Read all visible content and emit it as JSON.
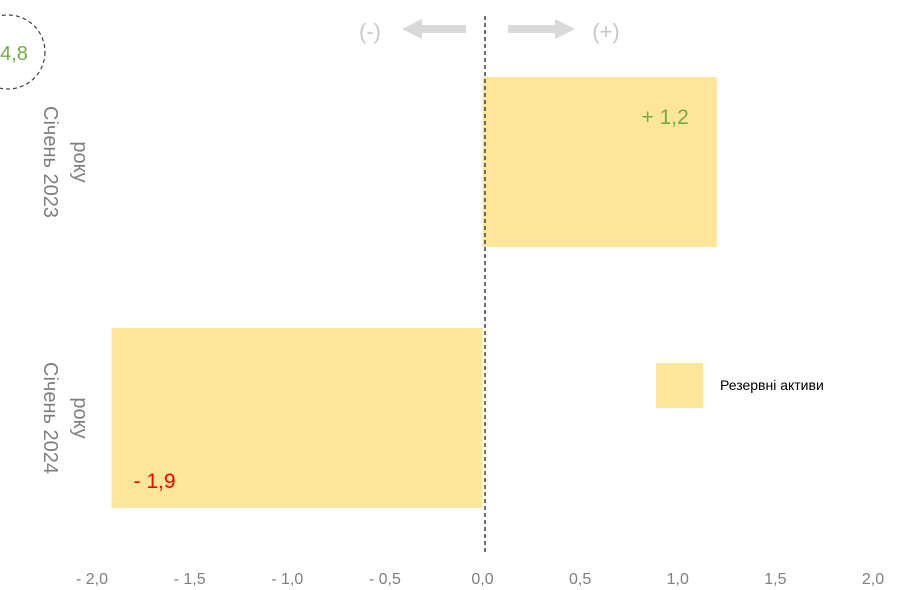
{
  "chart_data": {
    "type": "bar",
    "orientation": "horizontal",
    "categories": [
      "Січень 2023 року",
      "Січень 2024 року"
    ],
    "category_lines": [
      [
        "Січень 2023",
        "року"
      ],
      [
        "Січень 2024",
        "року"
      ]
    ],
    "series": [
      {
        "name": "Резервні активи",
        "values": [
          1.2,
          -1.9
        ],
        "color": "#fde59a"
      }
    ],
    "data_labels": [
      "+ 1,2",
      "- 1,9"
    ],
    "data_label_colors": [
      "#70ad47",
      "#ff0000"
    ],
    "xlim": [
      -2.0,
      2.0
    ],
    "xticks": [
      -2.0,
      -1.5,
      -1.0,
      -0.5,
      0.0,
      0.5,
      1.0,
      1.5,
      2.0
    ],
    "xtick_labels": [
      "- 2,0",
      "- 1,5",
      "- 1,0",
      "- 0,5",
      "0,0",
      "0,5",
      "1,0",
      "1,5",
      "2,0"
    ],
    "grid": false,
    "legend_position": "right",
    "direction_labels": {
      "negative": "(-)",
      "positive": "(+)"
    },
    "badge_value": "4,8",
    "colors": {
      "axis_text": "#7f7f7f",
      "arrow": "#d9d9d9",
      "sign": "#c7c7c7",
      "zero_line": "#404040",
      "badge_text": "#70ad47"
    }
  }
}
